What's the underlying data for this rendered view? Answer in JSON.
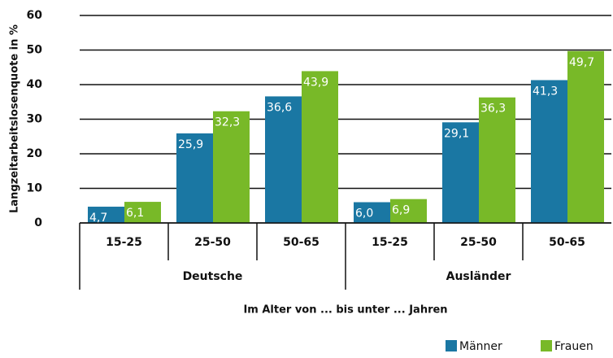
{
  "chart_data": {
    "type": "bar",
    "y_label": "Langzeitarbeitslosenquote in %",
    "x_label": "Im Alter von ... bis unter ... Jahren",
    "categories": [
      "15-25",
      "25-50",
      "50-65",
      "15-25",
      "25-50",
      "50-65"
    ],
    "groups": [
      "Deutsche",
      "Ausländer"
    ],
    "series": [
      {
        "name": "Männer",
        "color": "#1a77a3",
        "values": [
          4.7,
          25.9,
          36.6,
          6.0,
          29.1,
          41.3
        ],
        "value_labels": [
          "4,7",
          "25,9",
          "36,6",
          "6,0",
          "29,1",
          "41,3"
        ]
      },
      {
        "name": "Frauen",
        "color": "#78b928",
        "values": [
          6.1,
          32.3,
          43.9,
          6.9,
          36.3,
          49.7
        ],
        "value_labels": [
          "6,1",
          "32,3",
          "43,9",
          "6,9",
          "36,3",
          "49,7"
        ]
      }
    ],
    "ylim": [
      0,
      60
    ],
    "yticks": [
      0,
      10,
      20,
      30,
      40,
      50,
      60
    ],
    "grid": true,
    "legend": "bottom-right"
  }
}
